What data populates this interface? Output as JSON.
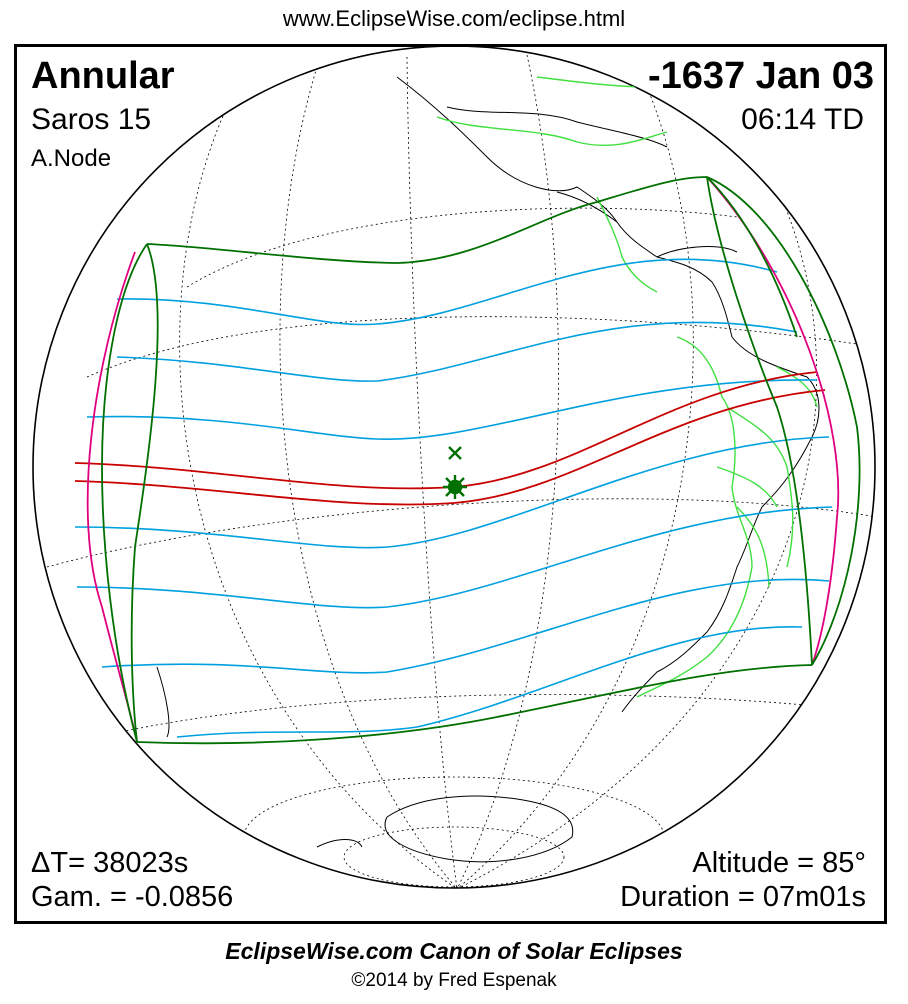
{
  "header_url": "www.EclipseWise.com/eclipse.html",
  "eclipse": {
    "type": "Annular",
    "saros": "Saros  15",
    "node": "A.Node",
    "date": "-1637 Jan 03",
    "time": "06:14 TD",
    "delta_t": "ΔT=  38023s",
    "gamma": "Gam. = -0.0856",
    "altitude": "Altitude = 85°",
    "duration": "Duration = 07m01s"
  },
  "footer": {
    "title": "EclipseWise.com Canon of Solar Eclipses",
    "copyright": "©2014 by Fred Espenak"
  },
  "colors": {
    "penumbral_limits": "#007000",
    "rise_set_limits": "#e0007f",
    "eclipse_magnitude_curves": "#00a0e0",
    "central_path": "#c80000",
    "borders": "#40e040",
    "greatest_eclipse_marker": "#007000",
    "coastlines": "#000000",
    "graticule": "#000000"
  }
}
